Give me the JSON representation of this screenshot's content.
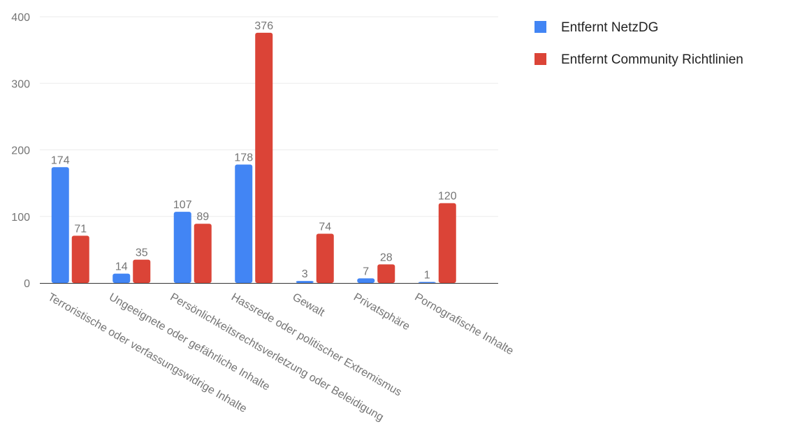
{
  "chart_data": {
    "type": "bar",
    "title": "",
    "xlabel": "",
    "ylabel": "",
    "ylim": [
      0,
      400
    ],
    "yticks": [
      0,
      100,
      200,
      300,
      400
    ],
    "grid": true,
    "legend_position": "top-right",
    "categories": [
      "Terroristische oder verfassungswidrige Inhalte",
      "Ungeeignete oder gefährliche Inhalte",
      "Persönlichkeitsrechtsverletzung oder Beleidigung",
      "Hassrede oder politischer Extremismus",
      "Gewalt",
      "Privatsphäre",
      "Pornografische Inhalte"
    ],
    "series": [
      {
        "name": "Entfernt NetzDG",
        "color": "#4285f4",
        "values": [
          174,
          14,
          107,
          178,
          3,
          7,
          1
        ]
      },
      {
        "name": "Entfernt Community Richtlinien",
        "color": "#db4437",
        "values": [
          71,
          35,
          89,
          376,
          74,
          28,
          120
        ]
      }
    ]
  }
}
